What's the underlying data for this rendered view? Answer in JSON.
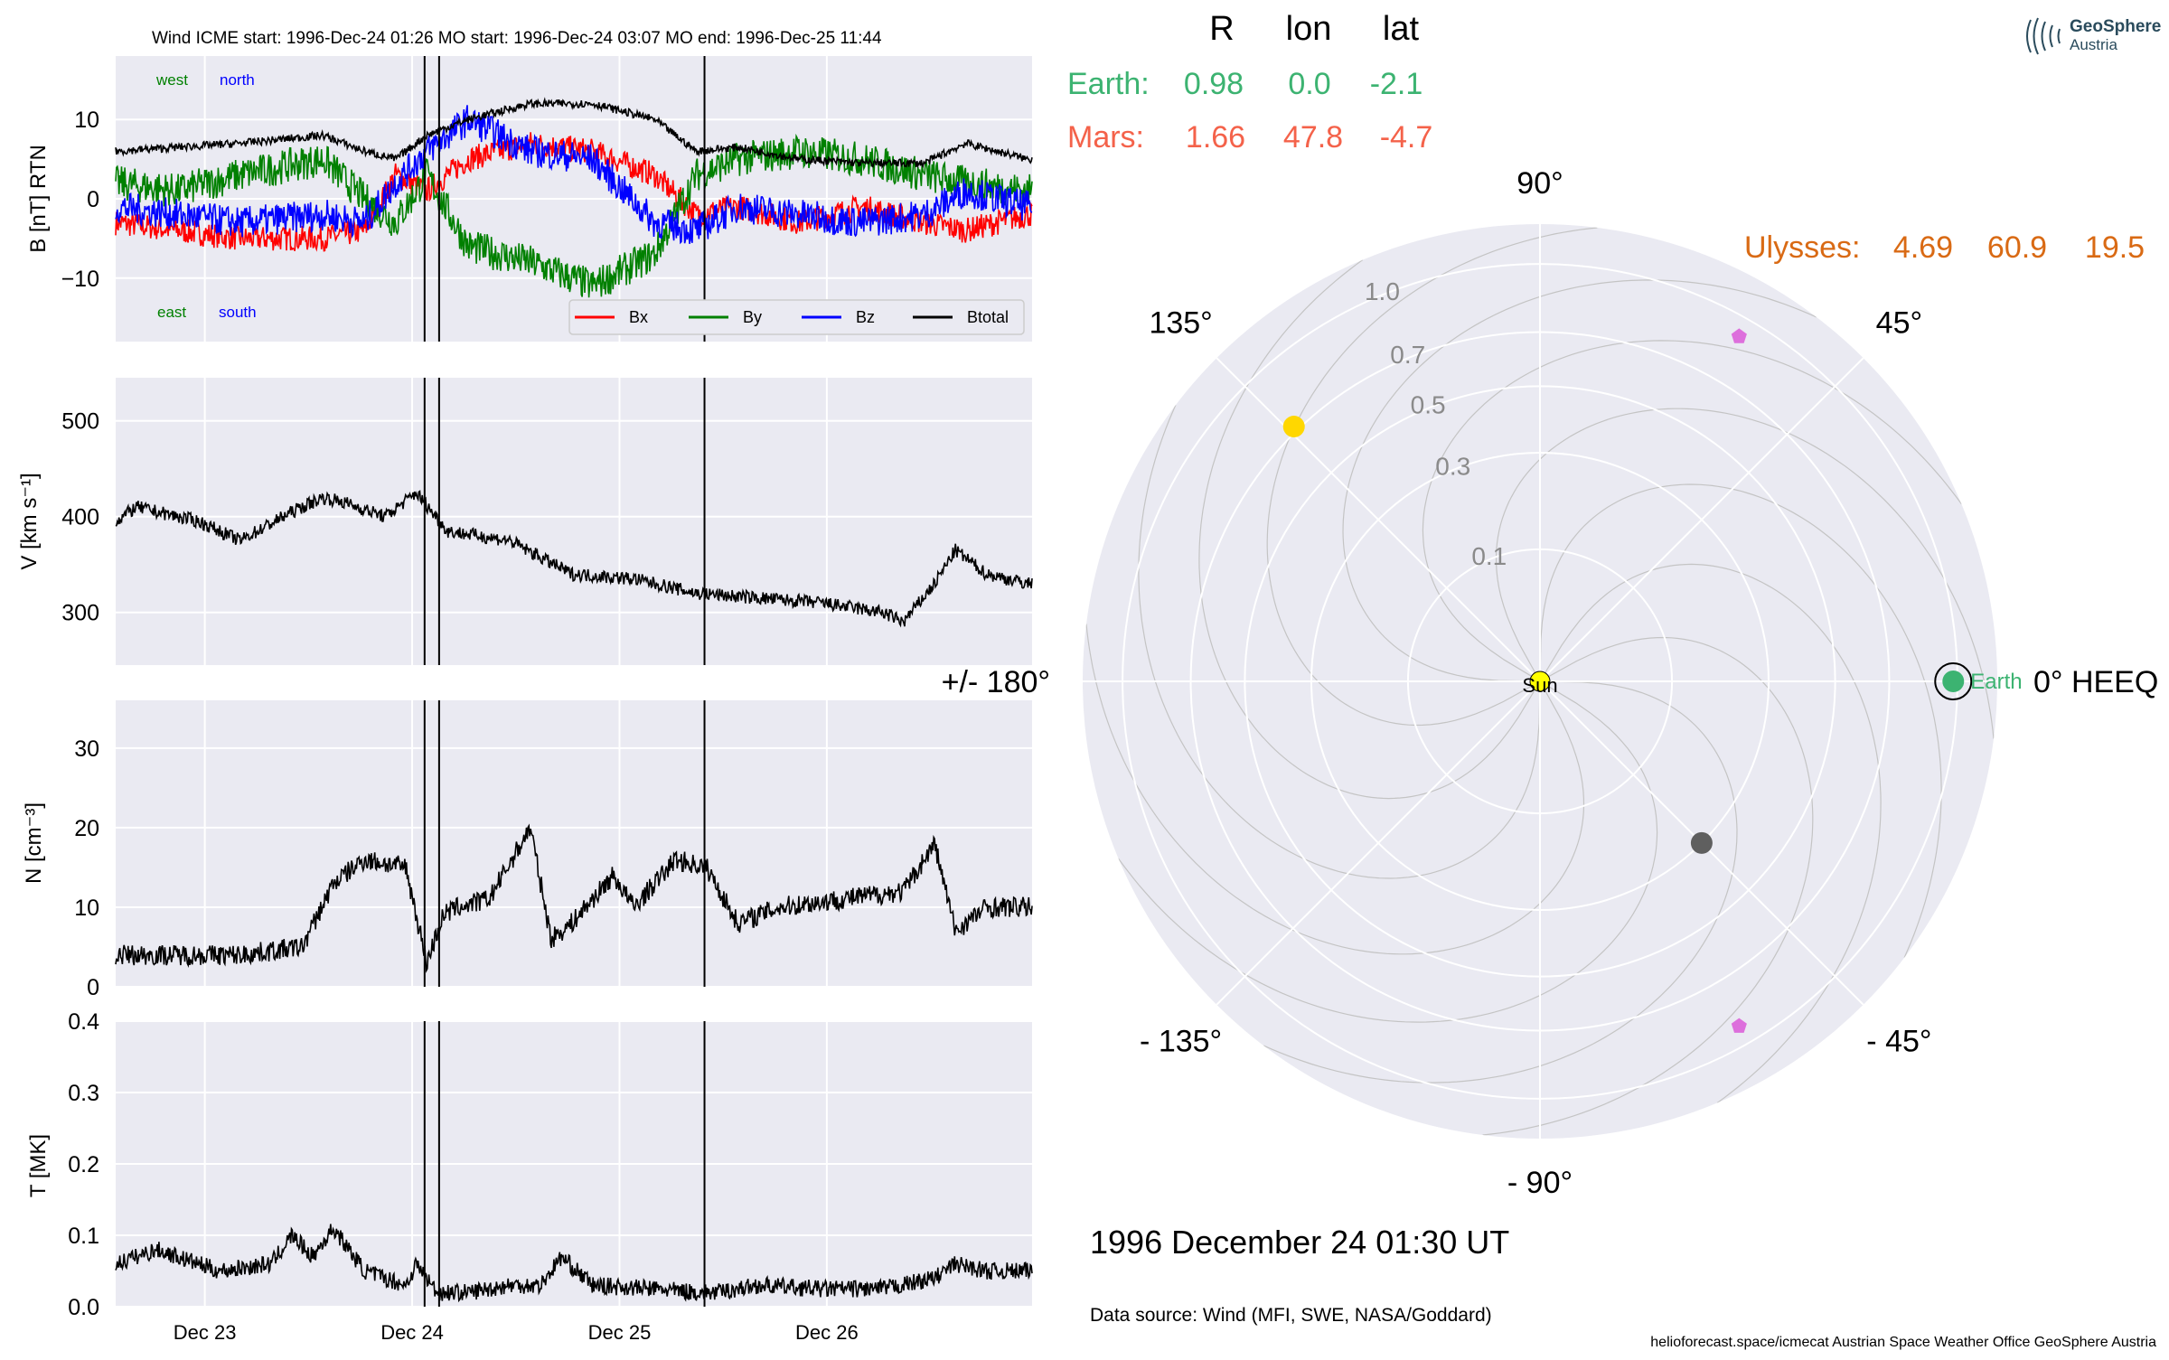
{
  "header": {
    "title": "Wind    ICME start: 1996-Dec-24 01:26   MO start: 1996-Dec-24 03:07   MO end: 1996-Dec-25 11:44"
  },
  "colors": {
    "bx": "#ff0000",
    "by": "#008000",
    "bz": "#0000ff",
    "btotal": "#000000",
    "panel_bg": "#eaeaf2",
    "earth": "#3cb371",
    "mars": "#f4624a",
    "ulysses": "#d96a14",
    "sun": "#ffff00",
    "mercury": "#5f5f5f",
    "venus": "#ffd700",
    "stereo": "#dd6fdc"
  },
  "chart_data": [
    {
      "type": "line",
      "panel": "magnetic-field",
      "ylabel": "B [nT] RTN",
      "ylim": [
        -18,
        18
      ],
      "yticks": [
        "10",
        "0",
        "−10"
      ],
      "xticks": [
        "Dec 23",
        "Dec 24",
        "Dec 25",
        "Dec 26"
      ],
      "event_lines": [
        "1996-Dec-24 01:26",
        "1996-Dec-24 03:07",
        "1996-Dec-25 11:44"
      ],
      "annotations": {
        "west": "west",
        "north": "north",
        "east": "east",
        "south": "south"
      },
      "legend": {
        "placement": "lower-right",
        "entries": [
          "Bx",
          "By",
          "Bz",
          "Btotal"
        ]
      },
      "series": [
        {
          "name": "Bx",
          "x_days": [
            0,
            0.3,
            0.6,
            1,
            1.2,
            1.35,
            1.5,
            1.7,
            2,
            2.3,
            2.6,
            2.8,
            3,
            3.3,
            3.6,
            3.9,
            4.1,
            4.4
          ],
          "values": [
            -3,
            -4,
            -5,
            -5,
            -4,
            3,
            1,
            5,
            7,
            6,
            3,
            -2,
            -1,
            -3,
            -1,
            -3,
            -4,
            -2
          ]
        },
        {
          "name": "By",
          "x_days": [
            0,
            0.3,
            0.6,
            1,
            1.2,
            1.35,
            1.5,
            1.7,
            2,
            2.3,
            2.6,
            2.8,
            3,
            3.3,
            3.6,
            3.9,
            4.1,
            4.4
          ],
          "values": [
            2,
            1,
            3,
            5,
            0,
            -3,
            3,
            -6,
            -8,
            -11,
            -7,
            3,
            5,
            6,
            5,
            3,
            2,
            1
          ]
        },
        {
          "name": "Bz",
          "x_days": [
            0,
            0.3,
            0.6,
            1,
            1.2,
            1.35,
            1.5,
            1.7,
            2,
            2.3,
            2.6,
            2.8,
            3,
            3.3,
            3.6,
            3.9,
            4.1,
            4.4
          ],
          "values": [
            -1,
            -2,
            -3,
            -2,
            -3,
            2,
            6,
            10,
            6,
            5,
            -3,
            -4,
            -1,
            -2,
            -3,
            -2,
            1,
            -1
          ]
        },
        {
          "name": "Btotal",
          "x_days": [
            0,
            0.3,
            0.6,
            1,
            1.2,
            1.35,
            1.5,
            1.7,
            2,
            2.3,
            2.6,
            2.8,
            3,
            3.3,
            3.6,
            3.9,
            4.1,
            4.4
          ],
          "values": [
            6,
            6.5,
            7,
            8,
            6,
            5,
            8,
            10,
            12,
            12,
            10,
            6,
            6.5,
            5,
            4.5,
            4.5,
            7,
            5
          ]
        }
      ]
    },
    {
      "type": "line",
      "panel": "speed",
      "ylabel": "V [km s⁻¹]",
      "ylim": [
        245,
        545
      ],
      "yticks": [
        "500",
        "400",
        "300"
      ],
      "series": [
        {
          "name": "V",
          "x_days": [
            0,
            0.1,
            0.4,
            0.6,
            0.85,
            1.0,
            1.1,
            1.3,
            1.45,
            1.6,
            1.9,
            2.2,
            2.5,
            2.8,
            3.1,
            3.4,
            3.7,
            3.8,
            3.95,
            4.05,
            4.2,
            4.4
          ],
          "values": [
            395,
            410,
            395,
            375,
            405,
            420,
            415,
            400,
            425,
            385,
            375,
            340,
            335,
            320,
            315,
            310,
            300,
            290,
            330,
            365,
            340,
            330
          ]
        }
      ]
    },
    {
      "type": "line",
      "panel": "density",
      "ylabel": "N [cm⁻³]",
      "ylim": [
        0,
        36
      ],
      "yticks": [
        "30",
        "20",
        "10",
        "0"
      ],
      "series": [
        {
          "name": "N",
          "x_days": [
            0,
            0.3,
            0.6,
            0.9,
            1.05,
            1.2,
            1.4,
            1.5,
            1.58,
            1.65,
            1.8,
            2.0,
            2.1,
            2.2,
            2.4,
            2.5,
            2.7,
            2.85,
            3.0,
            3.2,
            3.5,
            3.8,
            3.95,
            4.05,
            4.2,
            4.4
          ],
          "values": [
            4,
            4,
            4,
            5,
            13,
            16,
            15,
            3,
            9,
            10,
            11,
            20,
            6,
            8,
            14,
            10,
            16,
            15,
            8,
            10,
            11,
            12,
            18,
            7,
            10,
            10
          ]
        }
      ]
    },
    {
      "type": "line",
      "panel": "temperature",
      "ylabel": "T [MK]",
      "ylim": [
        0,
        0.4
      ],
      "yticks": [
        "0.4",
        "0.3",
        "0.2",
        "0.1",
        "0.0"
      ],
      "series": [
        {
          "name": "T",
          "x_days": [
            0,
            0.2,
            0.5,
            0.75,
            0.85,
            0.95,
            1.05,
            1.2,
            1.4,
            1.45,
            1.55,
            1.7,
            1.9,
            2.05,
            2.15,
            2.3,
            2.6,
            2.8,
            2.9,
            3.1,
            3.4,
            3.7,
            3.95,
            4.05,
            4.2,
            4.4
          ],
          "values": [
            0.06,
            0.08,
            0.05,
            0.06,
            0.1,
            0.07,
            0.11,
            0.05,
            0.03,
            0.06,
            0.02,
            0.02,
            0.03,
            0.03,
            0.07,
            0.03,
            0.025,
            0.02,
            0.02,
            0.03,
            0.025,
            0.025,
            0.04,
            0.06,
            0.05,
            0.05
          ]
        }
      ]
    },
    {
      "type": "scatter",
      "panel": "polar-orbit-plot",
      "r_ticks": [
        "0.1",
        "0.3",
        "0.5",
        "0.7",
        "1.0"
      ],
      "angle_labels": {
        "a0": "0° HEEQ",
        "a45": "45°",
        "a90": "90°",
        "a135": "135°",
        "a180": "+/- 180°",
        "am135": "- 135°",
        "am90": "- 90°",
        "am45": "- 45°"
      },
      "bodies": [
        {
          "name": "Sun",
          "r": 0.0,
          "lon_deg": 0,
          "label": "Sun"
        },
        {
          "name": "Earth",
          "r": 0.98,
          "lon_deg": 0.0,
          "label": "Earth"
        },
        {
          "name": "Mercury",
          "r": 0.3,
          "lon_deg": -45,
          "label": ""
        },
        {
          "name": "Venus",
          "r": 0.72,
          "lon_deg": 134,
          "label": ""
        },
        {
          "name": "Spacecraft A",
          "r": 0.91,
          "lon_deg": 60,
          "label": ""
        },
        {
          "name": "Spacecraft B",
          "r": 0.91,
          "lon_deg": -60,
          "label": ""
        }
      ],
      "table": {
        "columns": [
          "R",
          "lon",
          "lat"
        ],
        "rows": [
          {
            "name": "Earth:",
            "r": "0.98",
            "lon": "0.0",
            "lat": "-2.1"
          },
          {
            "name": "Mars:",
            "r": "1.66",
            "lon": "47.8",
            "lat": "-4.7"
          }
        ],
        "ulysses": {
          "name": "Ulysses:",
          "r": "4.69",
          "lon": "60.9",
          "lat": "19.5"
        }
      }
    }
  ],
  "footer": {
    "date": "1996 December 24  01:30 UT",
    "source": "Data source: Wind (MFI, SWE, NASA/Goddard)",
    "credits": "helioforecast.space/icmecat   Austrian Space Weather Office   GeoSphere Austria"
  },
  "logo": {
    "line1": "GeoSphere",
    "line2": "Austria"
  }
}
